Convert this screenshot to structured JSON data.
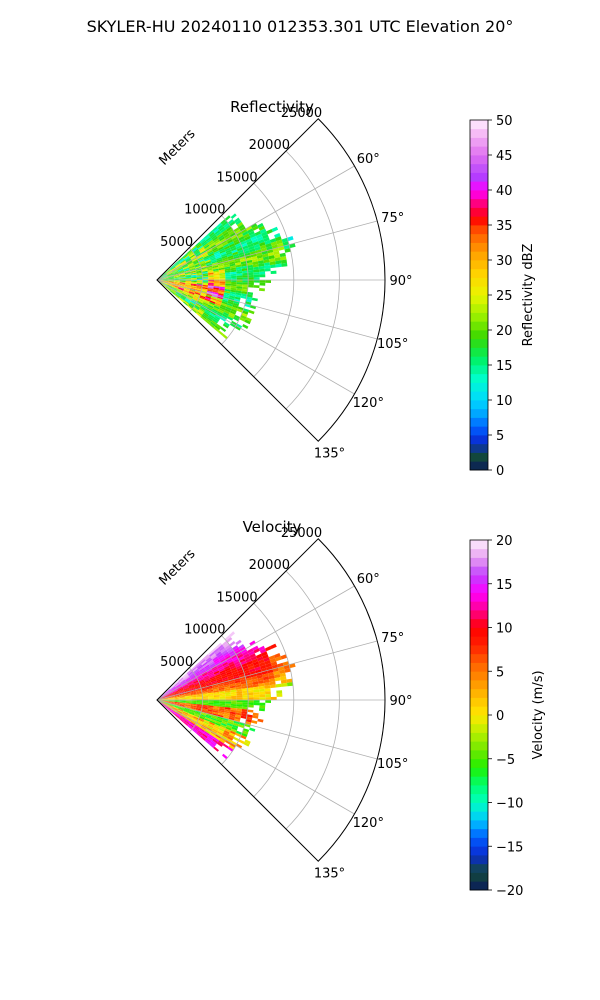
{
  "figure_title": "SKYLER-HU  20240110  012353.301 UTC Elevation 20°",
  "chart_data": [
    {
      "type": "polar-sector",
      "title": "Reflectivity",
      "field": "reflectivity",
      "range_label": "Meters",
      "range_ticks": [
        5000,
        10000,
        15000,
        20000,
        25000
      ],
      "range_tick_labels": [
        "5000",
        "10000",
        "15000",
        "20000",
        "25000"
      ],
      "rmax": 25000,
      "azimuth_range": [
        45,
        135
      ],
      "azimuth_ticks": [
        60,
        75,
        90,
        105,
        120,
        135
      ],
      "azimuth_tick_labels": [
        "60°",
        "75°",
        "90°",
        "105°",
        "120°",
        "135°"
      ],
      "grid": true,
      "colorbar": {
        "label": "Reflectivity dBZ",
        "min": 0,
        "max": 50,
        "ticks": [
          0,
          5,
          10,
          15,
          20,
          25,
          30,
          35,
          40,
          45,
          50
        ],
        "tick_labels": [
          "0",
          "5",
          "10",
          "15",
          "20",
          "25",
          "30",
          "35",
          "40",
          "45",
          "50"
        ],
        "stops": [
          {
            "v": 0,
            "c": "#0a1a5c"
          },
          {
            "v": 2,
            "c": "#134a3a"
          },
          {
            "v": 4,
            "c": "#0a2ad0"
          },
          {
            "v": 6,
            "c": "#005cff"
          },
          {
            "v": 8,
            "c": "#00a4ff"
          },
          {
            "v": 10,
            "c": "#00d8ff"
          },
          {
            "v": 13,
            "c": "#00ffcc"
          },
          {
            "v": 16,
            "c": "#00f060"
          },
          {
            "v": 19,
            "c": "#3ad800"
          },
          {
            "v": 22,
            "c": "#9af000"
          },
          {
            "v": 25,
            "c": "#eaf500"
          },
          {
            "v": 28,
            "c": "#ffd400"
          },
          {
            "v": 31,
            "c": "#ffa000"
          },
          {
            "v": 34,
            "c": "#ff5a00"
          },
          {
            "v": 36,
            "c": "#ff0000"
          },
          {
            "v": 38,
            "c": "#ff0078"
          },
          {
            "v": 40,
            "c": "#ff00ff"
          },
          {
            "v": 42,
            "c": "#b040ff"
          },
          {
            "v": 45,
            "c": "#e070f0"
          },
          {
            "v": 48,
            "c": "#f5b8f5"
          },
          {
            "v": 50,
            "c": "#fff0ff"
          }
        ]
      }
    },
    {
      "type": "polar-sector",
      "title": "Velocity",
      "field": "velocity",
      "range_label": "Meters",
      "range_ticks": [
        5000,
        10000,
        15000,
        20000,
        25000
      ],
      "range_tick_labels": [
        "5000",
        "10000",
        "15000",
        "20000",
        "25000"
      ],
      "rmax": 25000,
      "azimuth_range": [
        45,
        135
      ],
      "azimuth_ticks": [
        60,
        75,
        90,
        105,
        120,
        135
      ],
      "azimuth_tick_labels": [
        "60°",
        "75°",
        "90°",
        "105°",
        "120°",
        "135°"
      ],
      "grid": true,
      "colorbar": {
        "label": "Velocity (m/s)",
        "min": -20,
        "max": 20,
        "ticks": [
          -20,
          -15,
          -10,
          -5,
          0,
          5,
          10,
          15,
          20
        ],
        "tick_labels": [
          "−20",
          "−15",
          "−10",
          "−5",
          "0",
          "5",
          "10",
          "15",
          "20"
        ],
        "stops": [
          {
            "v": -20,
            "c": "#0a1a5c"
          },
          {
            "v": -18,
            "c": "#134a3a"
          },
          {
            "v": -16,
            "c": "#0a2ad0"
          },
          {
            "v": -14,
            "c": "#005cff"
          },
          {
            "v": -12,
            "c": "#00c8ff"
          },
          {
            "v": -10,
            "c": "#00ffc0"
          },
          {
            "v": -8,
            "c": "#00ff70"
          },
          {
            "v": -6,
            "c": "#20f000"
          },
          {
            "v": -4,
            "c": "#70e800"
          },
          {
            "v": -2,
            "c": "#b8f000"
          },
          {
            "v": 0,
            "c": "#ffe800"
          },
          {
            "v": 2,
            "c": "#ffc000"
          },
          {
            "v": 4,
            "c": "#ff9000"
          },
          {
            "v": 6,
            "c": "#ff6000"
          },
          {
            "v": 8,
            "c": "#ff2000"
          },
          {
            "v": 10,
            "c": "#ff0000"
          },
          {
            "v": 12,
            "c": "#ff0090"
          },
          {
            "v": 14,
            "c": "#ff00ff"
          },
          {
            "v": 16,
            "c": "#c040ff"
          },
          {
            "v": 18,
            "c": "#e8a0f0"
          },
          {
            "v": 20,
            "c": "#fff0ff"
          }
        ]
      }
    }
  ]
}
